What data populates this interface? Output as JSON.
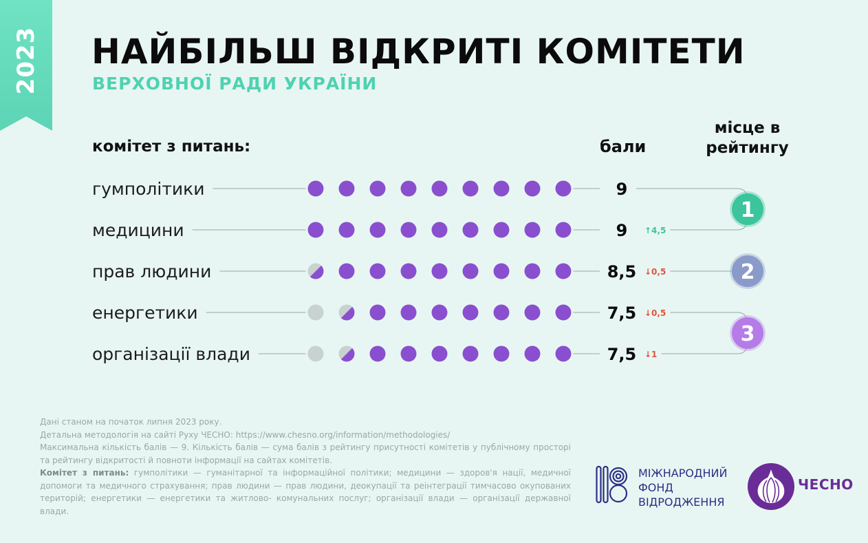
{
  "badge": {
    "year": "2023"
  },
  "title": "НАЙБІЛЬШ ВІДКРИТІ КОМІТЕТИ",
  "subtitle": "ВЕРХОВНОЇ РАДИ УКРАЇНИ",
  "headers": {
    "committee": "комітет з питань:",
    "score": "бали",
    "rank": "місце в рейтингу"
  },
  "colors": {
    "accent_teal": "#4fd2b1",
    "dot_filled": "#8a4fcf",
    "dot_empty": "#c8d2cf",
    "delta_up": "#3cc49d",
    "delta_down": "#e1533a",
    "rank1": "#3cc49d",
    "rank2": "#8a9ac9",
    "rank3": "#b57be6"
  },
  "chart_data": {
    "type": "dot-rating",
    "title": "НАЙБІЛЬШ ВІДКРИТІ КОМІТЕТИ ВЕРХОВНОЇ РАДИ УКРАЇНИ",
    "max_score": 9,
    "categories": [
      "гумполітики",
      "медицини",
      "прав людини",
      "енергетики",
      "організації влади"
    ],
    "values": [
      9,
      9,
      8.5,
      7.5,
      7.5
    ],
    "value_labels": [
      "9",
      "9",
      "8,5",
      "7,5",
      "7,5"
    ],
    "changes": [
      {
        "label": "",
        "direction": "none"
      },
      {
        "label": "↑4,5",
        "direction": "up"
      },
      {
        "label": "↓0,5",
        "direction": "down"
      },
      {
        "label": "↓0,5",
        "direction": "down"
      },
      {
        "label": "↓1",
        "direction": "down"
      }
    ],
    "ranks": [
      {
        "label": "1",
        "rows": [
          0,
          1
        ]
      },
      {
        "label": "2",
        "rows": [
          2
        ]
      },
      {
        "label": "3",
        "rows": [
          3,
          4
        ]
      }
    ]
  },
  "notes": {
    "line1": "Дані станом на початок липня 2023 року.",
    "line2": "Детальна методологія на сайті Руху ЧЕСНО: https://www.chesno.org/information/methodologies/",
    "line3": "Максимальна кількість балів — 9. Кількість балів — сума балів з рейтингу присутності комітетів у публічному просторі та рейтингу відкритості й повноти інформації на сайтах комітетів.",
    "line4_bold": "Комітет з питань:",
    "line4": " гумполітики — гуманітарної та інформаційної політики; медицини — здоров'я нації, медичної допомоги та медичного страхування; прав людини — прав людини, деокупації та реінтеграції тимчасово окупованих територій; енергетики — енергетики та житлово- комунальних послуг; організації влади — організації державної влади."
  },
  "logos": {
    "irf_line1": "МІЖНАРОДНИЙ",
    "irf_line2": "ФОНД",
    "irf_line3": "ВІДРОДЖЕННЯ",
    "chesno": "ЧЕСНО"
  }
}
